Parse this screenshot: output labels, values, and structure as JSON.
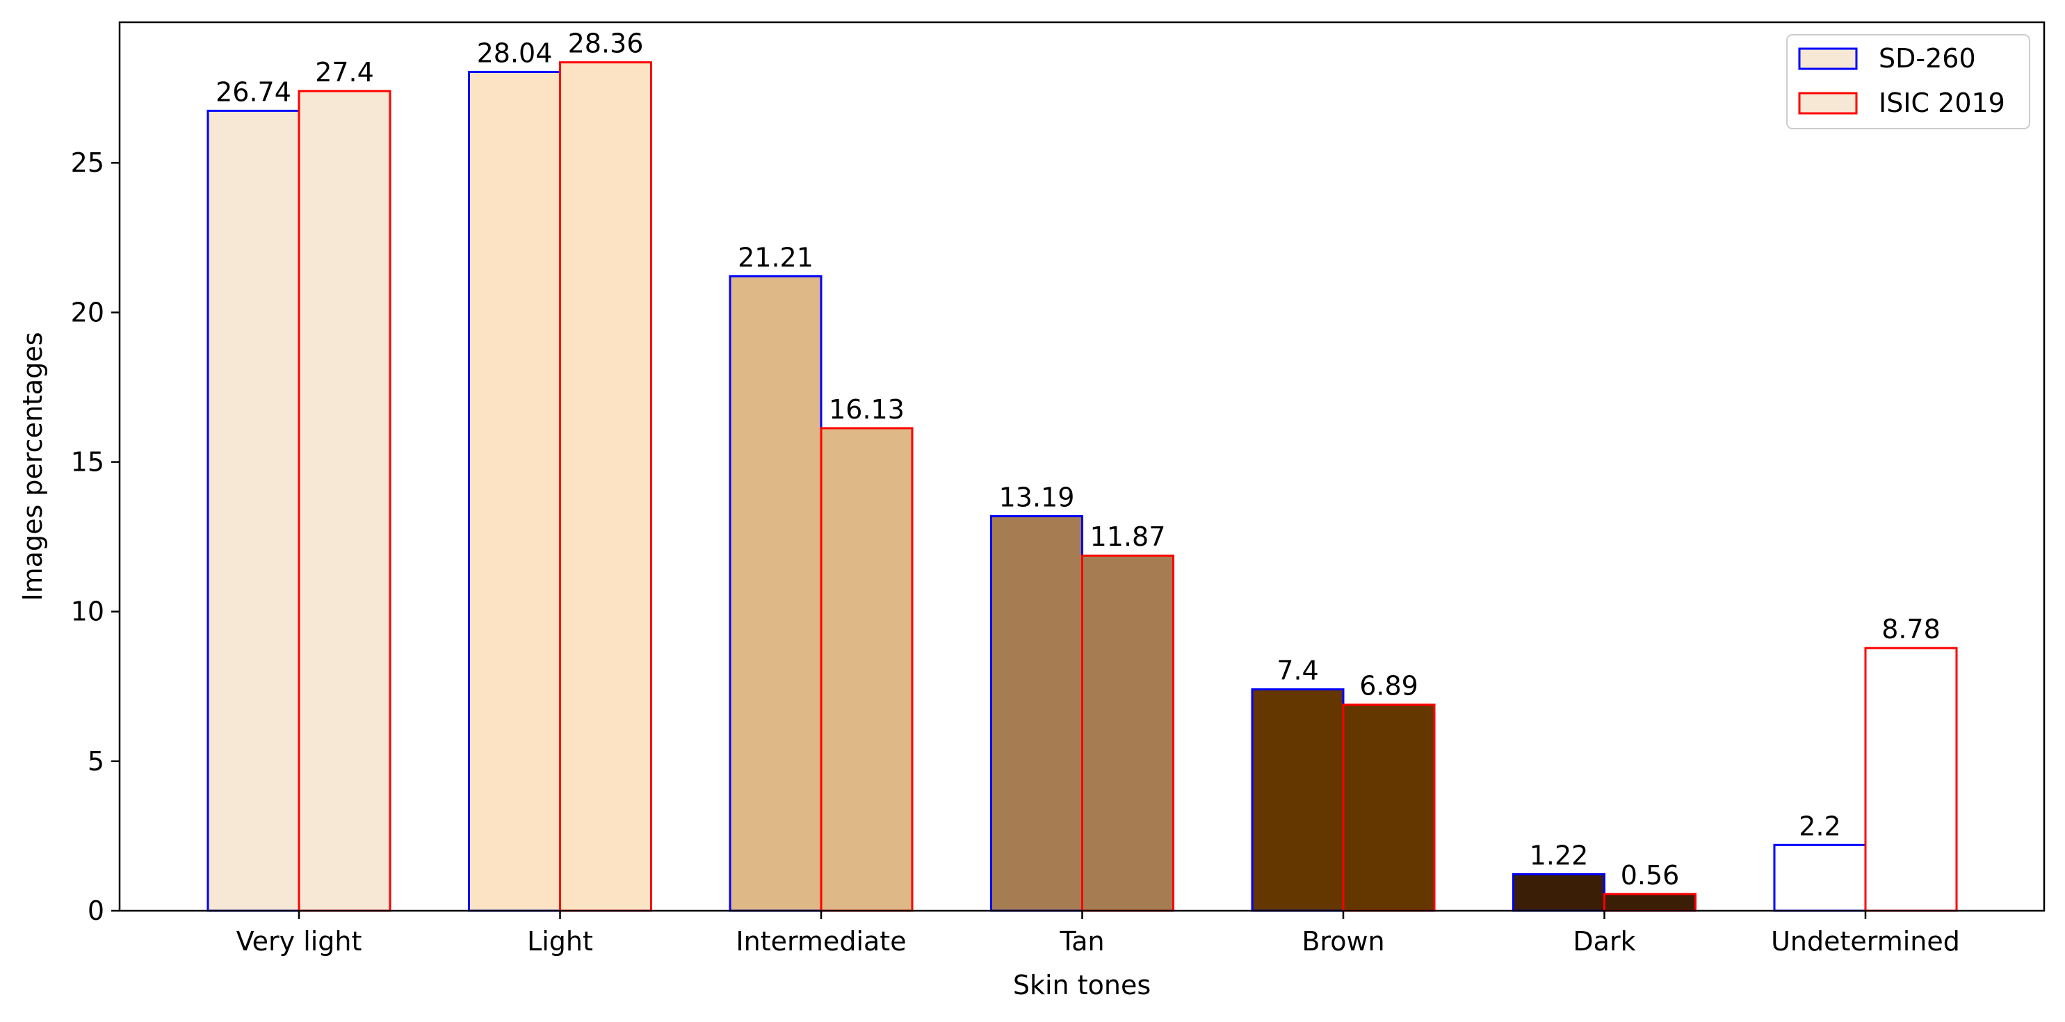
{
  "chart_data": {
    "type": "bar",
    "title": "",
    "xlabel": "Skin tones",
    "ylabel": "Images percentages",
    "ylim": [
      0,
      29.7
    ],
    "yticks": [
      0,
      5,
      10,
      15,
      20,
      25
    ],
    "grid": false,
    "legend_position": "top-right",
    "categories": [
      "Very light",
      "Light",
      "Intermediate",
      "Tan",
      "Brown",
      "Dark",
      "Undetermined"
    ],
    "category_colors": [
      "#F7E8D5",
      "#FCE3C4",
      "#DEB887",
      "#A67D53",
      "#643600",
      "#3A1E06",
      "#FFFFFF"
    ],
    "series": [
      {
        "name": "SD-260",
        "edge_color": "#0000FF",
        "values": [
          26.74,
          28.04,
          21.21,
          13.19,
          7.4,
          1.22,
          2.2
        ],
        "labels": [
          "26.74",
          "28.04",
          "21.21",
          "13.19",
          "7.4",
          "1.22",
          "2.2"
        ]
      },
      {
        "name": "ISIC 2019",
        "edge_color": "#FF0000",
        "values": [
          27.4,
          28.36,
          16.13,
          11.87,
          6.89,
          0.56,
          8.78
        ],
        "labels": [
          "27.4",
          "28.36",
          "16.13",
          "11.87",
          "6.89",
          "0.56",
          "8.78"
        ]
      }
    ],
    "legend_fill": "#F7E8D5"
  }
}
